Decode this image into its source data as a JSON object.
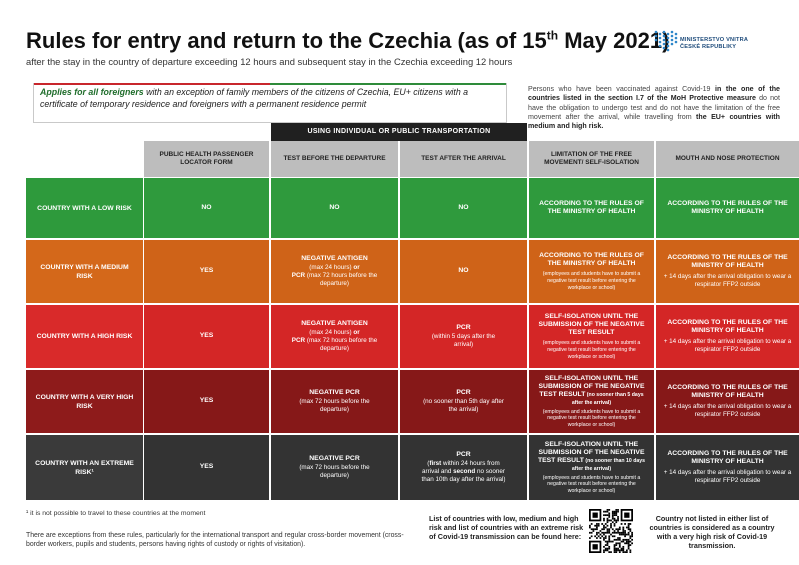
{
  "header": {
    "title_main": "Rules for entry and return to the Czechia (as of 15",
    "title_sup": "th",
    "title_end": " May 2021)",
    "subtitle": "after the stay in the country of departure exceeding 12 hours and subsequent stay in the Czechia exceeding 12 hours"
  },
  "logo": {
    "line1": "MINISTERSTVO VNITRA",
    "line2": "ČESKÉ REPUBLIKY",
    "color": "#2d86c9"
  },
  "applies": {
    "bold_part": "Applies for all foreigners",
    "rest": " with an exception of family members of the citizens of Czechia, EU+ citizens with a certificate of temporary residence and foreigners with a permanent residence permit"
  },
  "vaccinated": {
    "part1": "Persons who have been vaccinated against Covid-19 ",
    "part2": "in the one of the countries listed in the section I.7 of the MoH Protective measure",
    "part3": " do not have the obligation to undergo test and do not have the limitation of the free movement after the arrival, while travelling from ",
    "part4": "the EU+ countries with medium and high risk."
  },
  "transport_band": "USING INDIVIDUAL OR PUBLIC TRANSPORTATION",
  "columns": [
    "PUBLIC HEALTH PASSENGER LOCATOR FORM",
    "TEST BEFORE THE DEPARTURE",
    "TEST AFTER THE ARRIVAL",
    "LIMITATION OF THE FREE MOVEMENT/ SELF-ISOLATION",
    "MOUTH AND NOSE PROTECTION"
  ],
  "rows": [
    {
      "label": "COUNTRY WITH A LOW RISK",
      "color_label": "#2e9a3c",
      "color_body": "#2f9a3d",
      "plf": "NO",
      "before": {
        "main": "NO"
      },
      "after": {
        "main": "NO"
      },
      "isolation": {
        "main": "ACCORDING TO THE RULES OF THE MINISTRY OF HEALTH"
      },
      "mask": {
        "main": "ACCORDING TO THE RULES OF THE MINISTRY OF HEALTH"
      }
    },
    {
      "label": "COUNTRY WITH A MEDIUM RISK",
      "color_label": "#d4681a",
      "color_body": "#cf6318",
      "plf": "YES",
      "before": {
        "main": "NEGATIVE ANTIGEN",
        "l2": "(max 24 hours) ",
        "l2b": "or",
        "l3b": "PCR",
        "l3": " (max 72 hours before the departure)"
      },
      "after": {
        "main": "NO"
      },
      "isolation": {
        "main": "ACCORDING TO THE RULES OF THE MINISTRY OF HEALTH",
        "small": "(employees and students have to submit a negative test result before entering the workplace or school)"
      },
      "mask": {
        "main": "ACCORDING TO THE RULES OF THE MINISTRY OF HEALTH",
        "extra": "+ 14 days after the arrival obligation to wear a respirator FFP2 outside"
      }
    },
    {
      "label": "COUNTRY WITH A HIGH RISK",
      "color_label": "#d92a2a",
      "color_body": "#d42626",
      "plf": "YES",
      "before": {
        "main": "NEGATIVE ANTIGEN",
        "l2": "(max 24 hours) ",
        "l2b": "or",
        "l3b": "PCR",
        "l3": " (max 72 hours before the departure)"
      },
      "after": {
        "main": "PCR",
        "sub": "(within 5 days after the arrival)"
      },
      "isolation": {
        "main": "SELF-ISOLATION UNTIL THE SUBMISSION OF THE NEGATIVE TEST RESULT",
        "small": "(employees and students have to submit a negative test result before entering the workplace or school)"
      },
      "mask": {
        "main": "ACCORDING TO THE RULES OF THE MINISTRY OF HEALTH",
        "extra": "+ 14 days after the arrival obligation to wear a respirator FFP2 outside"
      }
    },
    {
      "label": "COUNTRY WITH A VERY HIGH RISK",
      "color_label": "#8e1b1b",
      "color_body": "#861818",
      "plf": "YES",
      "before": {
        "main": "NEGATIVE PCR",
        "sub": "(max 72 hours before the departure)"
      },
      "after": {
        "main": "PCR",
        "sub": "(no sooner than 5th day after the arrival)"
      },
      "isolation": {
        "main": "SELF-ISOLATION UNTIL THE SUBMISSION OF THE NEGATIVE TEST RESULT",
        "main_tail": " (no sooner than 5 days after the arrival)",
        "small": "(employees and students have to submit a negative test result before entering the workplace or school)"
      },
      "mask": {
        "main": "ACCORDING TO THE RULES OF THE MINISTRY OF HEALTH",
        "extra": "+ 14 days after the arrival obligation to wear a respirator FFP2 outside"
      }
    },
    {
      "label": "COUNTRY WITH AN EXTREME RISK¹",
      "color_label": "#3a3a3a",
      "color_body": "#333333",
      "plf": "YES",
      "before": {
        "main": "NEGATIVE PCR",
        "sub": "(max 72 hours before the departure)"
      },
      "after": {
        "main": "PCR",
        "sub1b": "first",
        "sub1": " within 24 hours from arrival and",
        "sub2b": "second",
        "sub2": " no sooner than 10th day after the arrival)"
      },
      "isolation": {
        "main": "SELF-ISOLATION UNTIL THE SUBMISSION OF THE NEGATIVE TEST RESULT",
        "main_tail": " (no sooner than 10 days after the arrival)",
        "small": "(employees and students have to submit a negative test result before entering the workplace or school)"
      },
      "mask": {
        "main": "ACCORDING TO THE RULES OF THE MINISTRY OF HEALTH",
        "extra": "+ 14 days after the arrival obligation to wear a respirator FFP2 outside"
      }
    }
  ],
  "footer": {
    "footnote": "¹ it is not possible to travel to these countries at the moment",
    "exceptions": "There are exceptions from these rules, particularly for the international transport and regular cross-border movement (cross-border workers, pupils and students, persons having rights of custody or rights of visitation).",
    "lists": "List of countries with low, medium and high risk and list of countries with an extreme risk of Covid-19 transmission can be found here:",
    "not_listed": "Country not listed in either list of countries is considered as a country with a very high risk of Covid-19 transmission."
  }
}
